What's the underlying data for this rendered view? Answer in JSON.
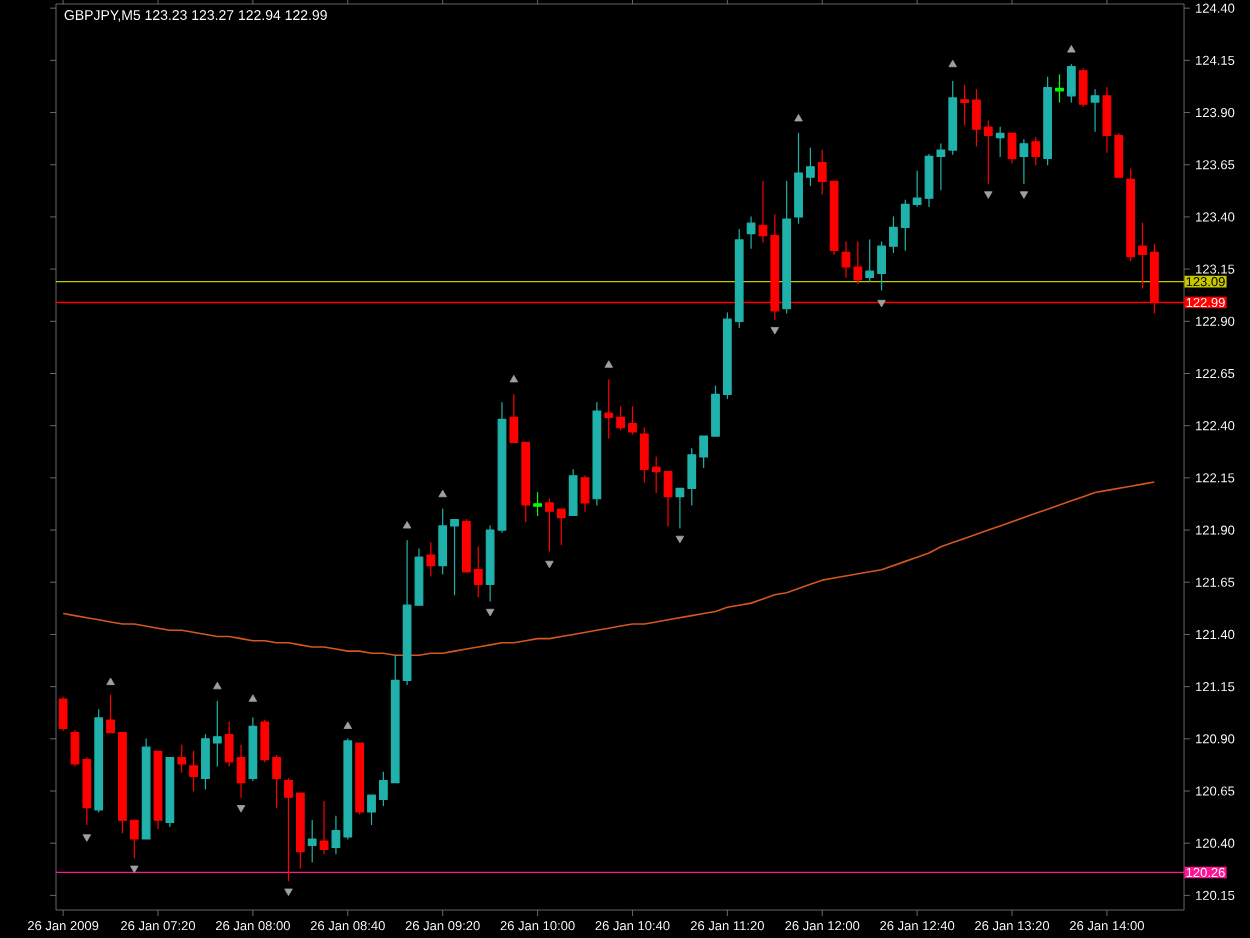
{
  "chart_data": {
    "type": "candlestick",
    "title": "GBPJPY,M5 123.23 123.27 122.94 122.99",
    "categories": [
      "26 Jan 2009",
      null,
      null,
      null,
      null,
      null,
      null,
      null,
      "26 Jan 07:20",
      null,
      null,
      null,
      null,
      null,
      null,
      null,
      "26 Jan 08:00",
      null,
      null,
      null,
      null,
      null,
      null,
      null,
      "26 Jan 08:40",
      null,
      null,
      null,
      null,
      null,
      null,
      null,
      "26 Jan 09:20",
      null,
      null,
      null,
      null,
      null,
      null,
      null,
      "26 Jan 10:00",
      null,
      null,
      null,
      null,
      null,
      null,
      null,
      "26 Jan 10:40",
      null,
      null,
      null,
      null,
      null,
      null,
      null,
      "26 Jan 11:20",
      null,
      null,
      null,
      null,
      null,
      null,
      null,
      "26 Jan 12:00",
      null,
      null,
      null,
      null,
      null,
      null,
      null,
      "26 Jan 12:40",
      null,
      null,
      null,
      null,
      null,
      null,
      null,
      "26 Jan 13:20",
      null,
      null,
      null,
      null,
      null,
      null,
      null,
      "26 Jan 14:00",
      null,
      null,
      null,
      null
    ],
    "ohlc": [
      [
        121.09,
        121.1,
        120.94,
        120.95
      ],
      [
        120.93,
        120.94,
        120.77,
        120.78
      ],
      [
        120.8,
        120.81,
        120.49,
        120.57
      ],
      [
        120.56,
        121.04,
        120.55,
        121.0
      ],
      [
        120.99,
        121.11,
        120.93,
        120.93
      ],
      [
        120.93,
        120.93,
        120.45,
        120.51
      ],
      [
        120.51,
        120.51,
        120.33,
        120.42
      ],
      [
        120.42,
        120.9,
        120.42,
        120.86
      ],
      [
        120.84,
        120.84,
        120.47,
        120.51
      ],
      [
        120.5,
        120.81,
        120.48,
        120.81
      ],
      [
        120.81,
        120.87,
        120.74,
        120.78
      ],
      [
        120.77,
        120.84,
        120.65,
        120.72
      ],
      [
        120.71,
        120.92,
        120.66,
        120.9
      ],
      [
        120.88,
        121.08,
        120.77,
        120.91
      ],
      [
        120.92,
        120.98,
        120.77,
        120.79
      ],
      [
        120.81,
        120.87,
        120.62,
        120.69
      ],
      [
        120.71,
        121.0,
        120.7,
        120.96
      ],
      [
        120.98,
        120.99,
        120.79,
        120.8
      ],
      [
        120.81,
        120.82,
        120.57,
        120.71
      ],
      [
        120.7,
        120.71,
        120.22,
        120.62
      ],
      [
        120.64,
        120.64,
        120.28,
        120.36
      ],
      [
        120.39,
        120.51,
        120.31,
        120.42
      ],
      [
        120.41,
        120.6,
        120.35,
        120.37
      ],
      [
        120.38,
        120.53,
        120.35,
        120.46
      ],
      [
        120.43,
        120.9,
        120.42,
        120.89
      ],
      [
        120.88,
        120.88,
        120.54,
        120.55
      ],
      [
        120.55,
        120.63,
        120.49,
        120.63
      ],
      [
        120.61,
        120.74,
        120.58,
        120.7
      ],
      [
        120.69,
        121.3,
        120.69,
        121.18
      ],
      [
        121.18,
        121.85,
        121.16,
        121.54
      ],
      [
        121.54,
        121.81,
        121.54,
        121.77
      ],
      [
        121.78,
        121.84,
        121.68,
        121.73
      ],
      [
        121.73,
        122.0,
        121.69,
        121.92
      ],
      [
        121.92,
        121.95,
        121.59,
        121.95
      ],
      [
        121.94,
        121.95,
        121.7,
        121.7
      ],
      [
        121.71,
        121.82,
        121.58,
        121.64
      ],
      [
        121.64,
        121.92,
        121.56,
        121.9
      ],
      [
        121.9,
        122.51,
        121.89,
        122.43
      ],
      [
        122.44,
        122.55,
        122.32,
        122.32
      ],
      [
        122.32,
        122.32,
        121.94,
        122.02
      ],
      [
        122.02,
        122.08,
        121.97,
        122.02
      ],
      [
        122.03,
        122.05,
        121.8,
        121.99
      ],
      [
        122.0,
        122.0,
        121.83,
        121.96
      ],
      [
        121.97,
        122.19,
        121.97,
        122.16
      ],
      [
        122.15,
        122.16,
        121.99,
        122.03
      ],
      [
        122.05,
        122.51,
        122.02,
        122.47
      ],
      [
        122.46,
        122.62,
        122.34,
        122.44
      ],
      [
        122.44,
        122.49,
        122.38,
        122.39
      ],
      [
        122.41,
        122.49,
        122.36,
        122.37
      ],
      [
        122.36,
        122.39,
        122.13,
        122.19
      ],
      [
        122.2,
        122.25,
        122.08,
        122.18
      ],
      [
        122.18,
        122.18,
        121.92,
        122.06
      ],
      [
        122.06,
        122.1,
        121.91,
        122.1
      ],
      [
        122.1,
        122.29,
        122.02,
        122.26
      ],
      [
        122.25,
        122.35,
        122.2,
        122.35
      ],
      [
        122.35,
        122.59,
        122.35,
        122.55
      ],
      [
        122.55,
        122.94,
        122.53,
        122.91
      ],
      [
        122.9,
        123.34,
        122.87,
        123.29
      ],
      [
        123.32,
        123.4,
        123.25,
        123.37
      ],
      [
        123.36,
        123.57,
        123.28,
        123.31
      ],
      [
        123.31,
        123.41,
        122.91,
        122.95
      ],
      [
        122.96,
        123.57,
        122.94,
        123.39
      ],
      [
        123.4,
        123.8,
        123.37,
        123.61
      ],
      [
        123.59,
        123.73,
        123.55,
        123.64
      ],
      [
        123.66,
        123.72,
        123.51,
        123.57
      ],
      [
        123.57,
        123.57,
        123.22,
        123.24
      ],
      [
        123.23,
        123.28,
        123.11,
        123.16
      ],
      [
        123.16,
        123.28,
        123.08,
        123.1
      ],
      [
        123.11,
        123.29,
        123.09,
        123.14
      ],
      [
        123.13,
        123.28,
        123.05,
        123.26
      ],
      [
        123.26,
        123.4,
        123.23,
        123.35
      ],
      [
        123.35,
        123.48,
        123.24,
        123.46
      ],
      [
        123.46,
        123.62,
        123.45,
        123.49
      ],
      [
        123.49,
        123.7,
        123.45,
        123.69
      ],
      [
        123.69,
        123.75,
        123.53,
        123.72
      ],
      [
        123.72,
        124.05,
        123.7,
        123.97
      ],
      [
        123.96,
        124.03,
        123.84,
        123.95
      ],
      [
        123.96,
        124.01,
        123.74,
        123.82
      ],
      [
        123.83,
        123.86,
        123.56,
        123.79
      ],
      [
        123.78,
        123.83,
        123.69,
        123.8
      ],
      [
        123.8,
        123.8,
        123.66,
        123.68
      ],
      [
        123.69,
        123.77,
        123.56,
        123.75
      ],
      [
        123.76,
        123.78,
        123.65,
        123.69
      ],
      [
        123.68,
        124.07,
        123.65,
        124.02
      ],
      [
        124.01,
        124.08,
        123.95,
        124.01
      ],
      [
        123.98,
        124.13,
        123.95,
        124.12
      ],
      [
        124.1,
        124.11,
        123.93,
        123.94
      ],
      [
        123.95,
        124.01,
        123.81,
        123.98
      ],
      [
        123.98,
        124.02,
        123.71,
        123.79
      ],
      [
        123.79,
        123.8,
        123.59,
        123.59
      ],
      [
        123.58,
        123.63,
        123.19,
        123.21
      ],
      [
        123.26,
        123.37,
        123.06,
        123.22
      ],
      [
        123.23,
        123.27,
        122.94,
        122.99
      ]
    ],
    "colors": [
      "#ff0000",
      "#ff0000",
      "#ff0000",
      "#20b2aa",
      "#ff0000",
      "#ff0000",
      "#ff0000",
      "#20b2aa",
      "#ff0000",
      "#20b2aa",
      "#ff0000",
      "#ff0000",
      "#20b2aa",
      "#20b2aa",
      "#ff0000",
      "#ff0000",
      "#20b2aa",
      "#ff0000",
      "#ff0000",
      "#ff0000",
      "#ff0000",
      "#20b2aa",
      "#ff0000",
      "#20b2aa",
      "#20b2aa",
      "#ff0000",
      "#20b2aa",
      "#20b2aa",
      "#20b2aa",
      "#20b2aa",
      "#20b2aa",
      "#ff0000",
      "#20b2aa",
      "#20b2aa",
      "#ff0000",
      "#ff0000",
      "#20b2aa",
      "#20b2aa",
      "#ff0000",
      "#ff0000",
      "#00ff00",
      "#ff0000",
      "#ff0000",
      "#20b2aa",
      "#ff0000",
      "#20b2aa",
      "#ff0000",
      "#ff0000",
      "#ff0000",
      "#ff0000",
      "#ff0000",
      "#ff0000",
      "#20b2aa",
      "#20b2aa",
      "#20b2aa",
      "#20b2aa",
      "#20b2aa",
      "#20b2aa",
      "#20b2aa",
      "#ff0000",
      "#ff0000",
      "#20b2aa",
      "#20b2aa",
      "#20b2aa",
      "#ff0000",
      "#ff0000",
      "#ff0000",
      "#ff0000",
      "#20b2aa",
      "#20b2aa",
      "#20b2aa",
      "#20b2aa",
      "#20b2aa",
      "#20b2aa",
      "#20b2aa",
      "#20b2aa",
      "#ff0000",
      "#ff0000",
      "#ff0000",
      "#20b2aa",
      "#ff0000",
      "#20b2aa",
      "#ff0000",
      "#20b2aa",
      "#00ff00",
      "#20b2aa",
      "#ff0000",
      "#20b2aa",
      "#ff0000",
      "#ff0000",
      "#ff0000",
      "#ff0000",
      "#ff0000"
    ],
    "series": [
      {
        "type": "line",
        "color": "#d2581e",
        "values": [
          121.5,
          121.49,
          121.48,
          121.47,
          121.46,
          121.45,
          121.45,
          121.44,
          121.43,
          121.42,
          121.42,
          121.41,
          121.4,
          121.39,
          121.39,
          121.38,
          121.37,
          121.37,
          121.36,
          121.36,
          121.35,
          121.34,
          121.34,
          121.33,
          121.32,
          121.32,
          121.31,
          121.31,
          121.3,
          121.3,
          121.3,
          121.31,
          121.31,
          121.32,
          121.33,
          121.34,
          121.35,
          121.36,
          121.36,
          121.37,
          121.38,
          121.38,
          121.39,
          121.4,
          121.41,
          121.42,
          121.43,
          121.44,
          121.45,
          121.45,
          121.46,
          121.47,
          121.48,
          121.49,
          121.5,
          121.51,
          121.53,
          121.54,
          121.55,
          121.57,
          121.59,
          121.6,
          121.62,
          121.64,
          121.66,
          121.67,
          121.68,
          121.69,
          121.7,
          121.71,
          121.73,
          121.75,
          121.77,
          121.79,
          121.82,
          121.84,
          121.86,
          121.88,
          121.9,
          121.92,
          121.94,
          121.96,
          121.98,
          122.0,
          122.02,
          122.04,
          122.06,
          122.08,
          122.09,
          122.1,
          122.11,
          122.12,
          122.13
        ]
      },
      {
        "type": "scatter",
        "color": "#a0a0a0",
        "marker": "triangle",
        "values": [
          null,
          null,
          null,
          null,
          121.17,
          null,
          null,
          null,
          null,
          null,
          null,
          null,
          null,
          121.15,
          null,
          null,
          121.09,
          null,
          null,
          null,
          null,
          null,
          null,
          null,
          120.96,
          null,
          null,
          null,
          null,
          121.92,
          null,
          null,
          122.07,
          null,
          null,
          null,
          null,
          null,
          122.62,
          null,
          null,
          null,
          null,
          null,
          null,
          null,
          122.69,
          null,
          null,
          null,
          null,
          null,
          null,
          null,
          null,
          null,
          null,
          null,
          null,
          null,
          null,
          null,
          123.87,
          null,
          null,
          null,
          null,
          null,
          null,
          null,
          null,
          null,
          null,
          null,
          null,
          124.13,
          null,
          null,
          null,
          null,
          null,
          null,
          null,
          null,
          null,
          124.2,
          null,
          null,
          null,
          null,
          null,
          null,
          null
        ]
      },
      {
        "type": "scatter",
        "color": "#a0a0a0",
        "marker": "triangle",
        "values": [
          null,
          null,
          120.43,
          null,
          null,
          null,
          120.28,
          null,
          null,
          null,
          null,
          null,
          null,
          null,
          null,
          120.57,
          null,
          null,
          null,
          120.17,
          null,
          null,
          null,
          null,
          null,
          null,
          null,
          null,
          null,
          null,
          null,
          null,
          null,
          null,
          null,
          null,
          121.51,
          null,
          null,
          null,
          null,
          121.74,
          null,
          null,
          null,
          null,
          null,
          null,
          null,
          null,
          null,
          null,
          121.86,
          null,
          null,
          null,
          null,
          null,
          null,
          null,
          122.86,
          null,
          null,
          null,
          null,
          null,
          null,
          null,
          null,
          122.99,
          null,
          null,
          null,
          null,
          null,
          null,
          null,
          null,
          123.51,
          null,
          null,
          123.51,
          null,
          null,
          null,
          null,
          null,
          null,
          null,
          null,
          null,
          null,
          null
        ]
      }
    ],
    "ylim": [
      120.08,
      124.42
    ],
    "yticks": [
      120.15,
      {
        "value": 120.4,
        "label": "120.40"
      },
      120.65,
      {
        "value": 120.9,
        "label": "120.90"
      },
      121.15,
      {
        "value": 121.4,
        "label": "121.40"
      },
      121.65,
      {
        "value": 121.9,
        "label": "121.90"
      },
      122.15,
      {
        "value": 122.4,
        "label": "122.40"
      },
      122.65,
      {
        "value": 122.9,
        "label": "122.90"
      },
      123.15,
      {
        "value": 123.4,
        "label": "123.40"
      },
      123.65,
      {
        "value": 123.9,
        "label": "123.90"
      },
      124.15,
      {
        "value": 124.4,
        "label": "124.40"
      }
    ],
    "ref_lines": [
      {
        "axis": "y",
        "value": 123.09,
        "label": "123.09",
        "color": "#c8c800"
      },
      {
        "axis": "y",
        "value": 122.99,
        "label": "122.99",
        "color": "#ff0000"
      },
      {
        "axis": "y",
        "value": 120.26,
        "label": "120.26",
        "color": "#ff1493"
      }
    ]
  }
}
